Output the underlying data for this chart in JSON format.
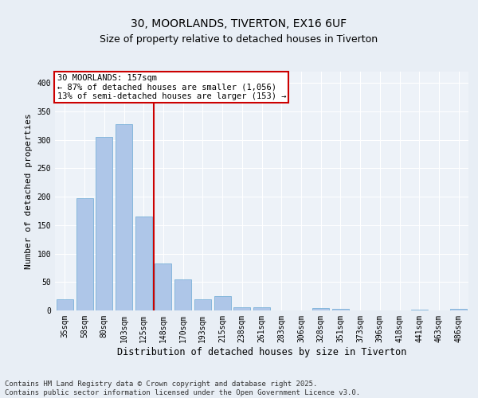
{
  "title1": "30, MOORLANDS, TIVERTON, EX16 6UF",
  "title2": "Size of property relative to detached houses in Tiverton",
  "xlabel": "Distribution of detached houses by size in Tiverton",
  "ylabel": "Number of detached properties",
  "categories": [
    "35sqm",
    "58sqm",
    "80sqm",
    "103sqm",
    "125sqm",
    "148sqm",
    "170sqm",
    "193sqm",
    "215sqm",
    "238sqm",
    "261sqm",
    "283sqm",
    "306sqm",
    "328sqm",
    "351sqm",
    "373sqm",
    "396sqm",
    "418sqm",
    "441sqm",
    "463sqm",
    "486sqm"
  ],
  "values": [
    20,
    198,
    305,
    328,
    165,
    83,
    55,
    20,
    25,
    6,
    6,
    0,
    0,
    4,
    3,
    0,
    0,
    0,
    2,
    0,
    3
  ],
  "bar_color": "#aec6e8",
  "bar_edge_color": "#6aaad4",
  "marker_line_color": "#cc0000",
  "annotation_line1": "30 MOORLANDS: 157sqm",
  "annotation_line2": "← 87% of detached houses are smaller (1,056)",
  "annotation_line3": "13% of semi-detached houses are larger (153) →",
  "annotation_box_color": "#ffffff",
  "annotation_box_edge": "#cc0000",
  "footer1": "Contains HM Land Registry data © Crown copyright and database right 2025.",
  "footer2": "Contains public sector information licensed under the Open Government Licence v3.0.",
  "bg_color": "#e8eef5",
  "plot_bg_color": "#edf2f8",
  "grid_color": "#ffffff",
  "ylim": [
    0,
    420
  ],
  "title1_fontsize": 10,
  "title2_fontsize": 9,
  "xlabel_fontsize": 8.5,
  "ylabel_fontsize": 8,
  "tick_fontsize": 7,
  "footer_fontsize": 6.5,
  "ann_fontsize": 7.5
}
